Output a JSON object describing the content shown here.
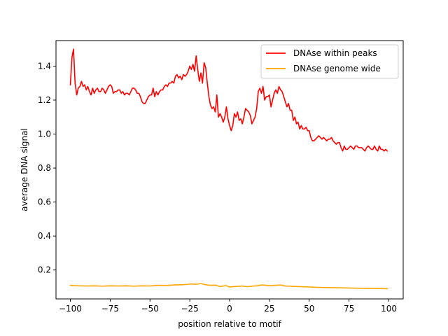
{
  "chart_data": {
    "type": "line",
    "title": "",
    "xlabel": "position relative to motif",
    "ylabel": "average DNA signal",
    "xlim": [
      -109,
      109
    ],
    "ylim": [
      0.03,
      1.55
    ],
    "xticks": [
      -100,
      -75,
      -50,
      -25,
      0,
      25,
      50,
      75,
      100
    ],
    "xtick_labels": [
      "−100",
      "−75",
      "−50",
      "−25",
      "0",
      "25",
      "50",
      "75",
      "100"
    ],
    "yticks": [
      0.2,
      0.4,
      0.6,
      0.8,
      1.0,
      1.2,
      1.4
    ],
    "ytick_labels": [
      "0.2",
      "0.4",
      "0.6",
      "0.8",
      "1.0",
      "1.2",
      "1.4"
    ],
    "grid": false,
    "legend_position": "top-right",
    "series": [
      {
        "name": "DNAse within peaks",
        "color": "#ff0000",
        "points": [
          [
            -100,
            1.29
          ],
          [
            -99,
            1.45
          ],
          [
            -98,
            1.5
          ],
          [
            -97,
            1.3
          ],
          [
            -96,
            1.23
          ],
          [
            -95,
            1.27
          ],
          [
            -94,
            1.28
          ],
          [
            -93,
            1.31
          ],
          [
            -92,
            1.28
          ],
          [
            -91,
            1.29
          ],
          [
            -90,
            1.26
          ],
          [
            -89,
            1.28
          ],
          [
            -88,
            1.25
          ],
          [
            -87,
            1.23
          ],
          [
            -86,
            1.27
          ],
          [
            -85,
            1.24
          ],
          [
            -84,
            1.26
          ],
          [
            -83,
            1.27
          ],
          [
            -82,
            1.25
          ],
          [
            -81,
            1.25
          ],
          [
            -80,
            1.27
          ],
          [
            -79,
            1.26
          ],
          [
            -78,
            1.24
          ],
          [
            -77,
            1.26
          ],
          [
            -76,
            1.28
          ],
          [
            -75,
            1.29
          ],
          [
            -74,
            1.28
          ],
          [
            -73,
            1.24
          ],
          [
            -72,
            1.25
          ],
          [
            -71,
            1.25
          ],
          [
            -70,
            1.26
          ],
          [
            -69,
            1.26
          ],
          [
            -68,
            1.24
          ],
          [
            -67,
            1.25
          ],
          [
            -66,
            1.23
          ],
          [
            -65,
            1.24
          ],
          [
            -64,
            1.24
          ],
          [
            -63,
            1.23
          ],
          [
            -62,
            1.25
          ],
          [
            -61,
            1.27
          ],
          [
            -60,
            1.27
          ],
          [
            -59,
            1.26
          ],
          [
            -58,
            1.24
          ],
          [
            -57,
            1.24
          ],
          [
            -56,
            1.22
          ],
          [
            -55,
            1.19
          ],
          [
            -54,
            1.18
          ],
          [
            -53,
            1.18
          ],
          [
            -52,
            1.2
          ],
          [
            -51,
            1.22
          ],
          [
            -50,
            1.23
          ],
          [
            -49,
            1.23
          ],
          [
            -48,
            1.27
          ],
          [
            -47,
            1.22
          ],
          [
            -46,
            1.25
          ],
          [
            -45,
            1.23
          ],
          [
            -44,
            1.25
          ],
          [
            -43,
            1.26
          ],
          [
            -42,
            1.26
          ],
          [
            -41,
            1.28
          ],
          [
            -40,
            1.29
          ],
          [
            -39,
            1.28
          ],
          [
            -38,
            1.3
          ],
          [
            -37,
            1.3
          ],
          [
            -36,
            1.31
          ],
          [
            -35,
            1.3
          ],
          [
            -34,
            1.34
          ],
          [
            -33,
            1.35
          ],
          [
            -32,
            1.33
          ],
          [
            -31,
            1.34
          ],
          [
            -30,
            1.32
          ],
          [
            -29,
            1.35
          ],
          [
            -28,
            1.34
          ],
          [
            -27,
            1.35
          ],
          [
            -26,
            1.37
          ],
          [
            -25,
            1.4
          ],
          [
            -24,
            1.38
          ],
          [
            -23,
            1.41
          ],
          [
            -22,
            1.37
          ],
          [
            -21,
            1.46
          ],
          [
            -20,
            1.38
          ],
          [
            -19,
            1.31
          ],
          [
            -18,
            1.36
          ],
          [
            -17,
            1.3
          ],
          [
            -16,
            1.42
          ],
          [
            -15,
            1.39
          ],
          [
            -14,
            1.3
          ],
          [
            -13,
            1.22
          ],
          [
            -12,
            1.17
          ],
          [
            -11,
            1.15
          ],
          [
            -10,
            1.16
          ],
          [
            -9,
            1.13
          ],
          [
            -8,
            1.23
          ],
          [
            -7,
            1.1
          ],
          [
            -6,
            1.12
          ],
          [
            -5,
            1.1
          ],
          [
            -4,
            1.07
          ],
          [
            -3,
            1.1
          ],
          [
            -2,
            1.16
          ],
          [
            -1,
            1.09
          ],
          [
            0,
            1.05
          ],
          [
            1,
            1.02
          ],
          [
            2,
            1.05
          ],
          [
            3,
            1.12
          ],
          [
            4,
            1.1
          ],
          [
            5,
            1.13
          ],
          [
            6,
            1.08
          ],
          [
            7,
            1.09
          ],
          [
            8,
            1.06
          ],
          [
            9,
            1.1
          ],
          [
            10,
            1.15
          ],
          [
            11,
            1.14
          ],
          [
            12,
            1.13
          ],
          [
            13,
            1.11
          ],
          [
            14,
            1.06
          ],
          [
            15,
            1.08
          ],
          [
            16,
            1.1
          ],
          [
            17,
            1.15
          ],
          [
            18,
            1.25
          ],
          [
            19,
            1.27
          ],
          [
            20,
            1.24
          ],
          [
            21,
            1.28
          ],
          [
            22,
            1.2
          ],
          [
            23,
            1.22
          ],
          [
            24,
            1.22
          ],
          [
            25,
            1.23
          ],
          [
            26,
            1.16
          ],
          [
            27,
            1.2
          ],
          [
            28,
            1.24
          ],
          [
            29,
            1.26
          ],
          [
            30,
            1.24
          ],
          [
            31,
            1.28
          ],
          [
            32,
            1.26
          ],
          [
            33,
            1.25
          ],
          [
            34,
            1.22
          ],
          [
            35,
            1.19
          ],
          [
            36,
            1.16
          ],
          [
            37,
            1.18
          ],
          [
            38,
            1.14
          ],
          [
            39,
            1.14
          ],
          [
            40,
            1.08
          ],
          [
            41,
            1.1
          ],
          [
            42,
            1.06
          ],
          [
            43,
            1.07
          ],
          [
            44,
            1.03
          ],
          [
            45,
            1.05
          ],
          [
            46,
            1.03
          ],
          [
            47,
            1.03
          ],
          [
            48,
            1.04
          ],
          [
            49,
            1.02
          ],
          [
            50,
            1.02
          ],
          [
            51,
            0.98
          ],
          [
            52,
            0.96
          ],
          [
            53,
            0.96
          ],
          [
            54,
            0.97
          ],
          [
            55,
            0.98
          ],
          [
            56,
            0.99
          ],
          [
            57,
            0.98
          ],
          [
            58,
            0.97
          ],
          [
            59,
            0.98
          ],
          [
            60,
            0.97
          ],
          [
            61,
            0.96
          ],
          [
            62,
            0.97
          ],
          [
            63,
            0.97
          ],
          [
            64,
            0.98
          ],
          [
            65,
            0.96
          ],
          [
            66,
            0.95
          ],
          [
            67,
            0.94
          ],
          [
            68,
            0.95
          ],
          [
            69,
            0.95
          ],
          [
            70,
            0.92
          ],
          [
            71,
            0.9
          ],
          [
            72,
            0.93
          ],
          [
            73,
            0.91
          ],
          [
            74,
            0.91
          ],
          [
            75,
            0.92
          ],
          [
            76,
            0.93
          ],
          [
            77,
            0.92
          ],
          [
            78,
            0.91
          ],
          [
            79,
            0.93
          ],
          [
            80,
            0.93
          ],
          [
            81,
            0.92
          ],
          [
            82,
            0.92
          ],
          [
            83,
            0.92
          ],
          [
            84,
            0.91
          ],
          [
            85,
            0.9
          ],
          [
            86,
            0.92
          ],
          [
            87,
            0.93
          ],
          [
            88,
            0.92
          ],
          [
            89,
            0.91
          ],
          [
            90,
            0.91
          ],
          [
            91,
            0.93
          ],
          [
            92,
            0.91
          ],
          [
            93,
            0.9
          ],
          [
            94,
            0.93
          ],
          [
            95,
            0.91
          ],
          [
            96,
            0.91
          ],
          [
            97,
            0.9
          ],
          [
            98,
            0.91
          ],
          [
            99,
            0.9
          ]
        ]
      },
      {
        "name": "DNAse genome wide",
        "color": "#ffa500",
        "points": [
          [
            -100,
            0.11
          ],
          [
            -98,
            0.108
          ],
          [
            -95,
            0.107
          ],
          [
            -90,
            0.106
          ],
          [
            -85,
            0.107
          ],
          [
            -80,
            0.105
          ],
          [
            -75,
            0.107
          ],
          [
            -70,
            0.106
          ],
          [
            -65,
            0.107
          ],
          [
            -60,
            0.105
          ],
          [
            -55,
            0.107
          ],
          [
            -50,
            0.106
          ],
          [
            -45,
            0.11
          ],
          [
            -40,
            0.109
          ],
          [
            -35,
            0.112
          ],
          [
            -30,
            0.113
          ],
          [
            -27,
            0.115
          ],
          [
            -24,
            0.118
          ],
          [
            -21,
            0.116
          ],
          [
            -18,
            0.12
          ],
          [
            -15,
            0.113
          ],
          [
            -12,
            0.11
          ],
          [
            -9,
            0.111
          ],
          [
            -6,
            0.103
          ],
          [
            -4,
            0.106
          ],
          [
            -2,
            0.108
          ],
          [
            0,
            0.1
          ],
          [
            2,
            0.102
          ],
          [
            5,
            0.104
          ],
          [
            8,
            0.106
          ],
          [
            11,
            0.102
          ],
          [
            14,
            0.105
          ],
          [
            17,
            0.107
          ],
          [
            20,
            0.112
          ],
          [
            23,
            0.11
          ],
          [
            26,
            0.108
          ],
          [
            29,
            0.11
          ],
          [
            32,
            0.112
          ],
          [
            35,
            0.106
          ],
          [
            40,
            0.104
          ],
          [
            45,
            0.102
          ],
          [
            50,
            0.1
          ],
          [
            55,
            0.098
          ],
          [
            60,
            0.097
          ],
          [
            65,
            0.096
          ],
          [
            70,
            0.095
          ],
          [
            75,
            0.094
          ],
          [
            80,
            0.093
          ],
          [
            85,
            0.092
          ],
          [
            90,
            0.092
          ],
          [
            95,
            0.091
          ],
          [
            99,
            0.09
          ]
        ]
      }
    ]
  }
}
